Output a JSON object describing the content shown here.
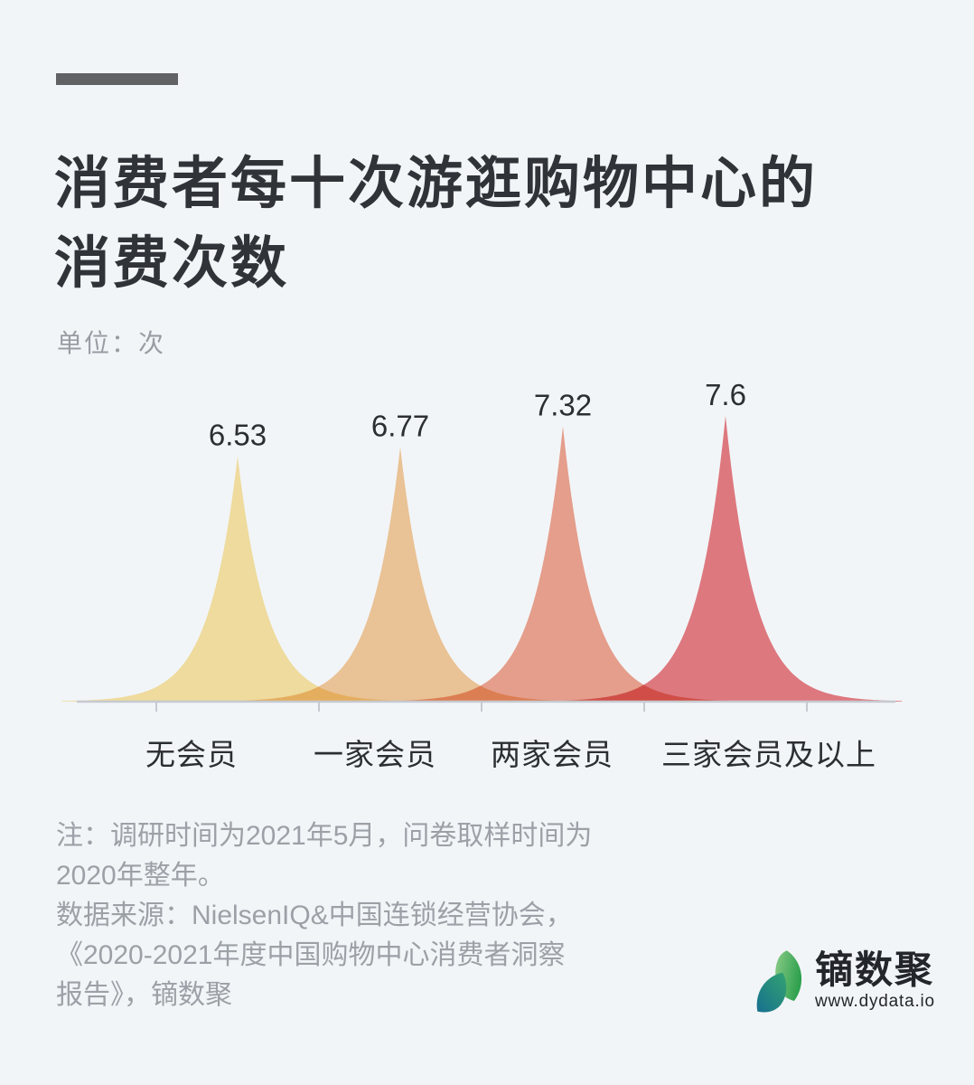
{
  "page": {
    "background": "#F2F5F8"
  },
  "header": {
    "accent_color": "#606264",
    "title_line1": "消费者每十次游逛购物中心的",
    "title_line2": "消费次数"
  },
  "unit_label": "单位：次",
  "chart_data": {
    "type": "area",
    "subtype": "peak-density",
    "title": "消费者每十次游逛购物中心的消费次数",
    "unit": "次",
    "categories": [
      "无会员",
      "一家会员",
      "两家会员",
      "三家会员及以上"
    ],
    "values": [
      6.53,
      6.77,
      7.32,
      7.6
    ],
    "value_labels": [
      "6.53",
      "6.77",
      "7.32",
      "7.6"
    ],
    "colors": [
      "#FBE4A2",
      "#F6CA99",
      "#F1A58F",
      "#E97D82"
    ],
    "blend": "multiply",
    "ylim": [
      0,
      7.6
    ],
    "grid": false,
    "legend": "none",
    "axis_color": "#C6CAD0",
    "text_color": "#2B2E32"
  },
  "notes": {
    "lines": [
      "注：调研时间为2021年5月，问卷取样时间为",
      "2020年整年。",
      "数据来源：NielsenIQ&中国连锁经营协会，",
      "《2020-2021年度中国购物中心消费者洞察",
      "报告》，镝数聚"
    ]
  },
  "logo": {
    "name": "镝数聚",
    "url": "www.dydata.io",
    "leaf_green_start": "#8BCB86",
    "leaf_green_end": "#2FA14F",
    "leaf_teal_start": "#17708F",
    "leaf_teal_end": "#33A371"
  }
}
